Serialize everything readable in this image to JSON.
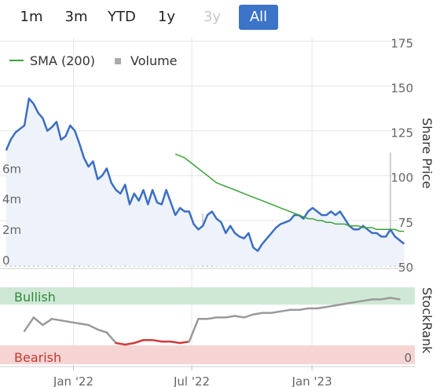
{
  "range_selector": {
    "buttons": [
      {
        "label": "1m",
        "state": "normal"
      },
      {
        "label": "3m",
        "state": "normal"
      },
      {
        "label": "YTD",
        "state": "normal"
      },
      {
        "label": "1y",
        "state": "normal"
      },
      {
        "label": "3y",
        "state": "disabled"
      },
      {
        "label": "All",
        "state": "active"
      }
    ]
  },
  "legend": {
    "sma_label": "SMA (200)",
    "volume_label": "Volume"
  },
  "colors": {
    "price_line": "#3b6fc2",
    "price_fill": "#eef2fa",
    "sma_line": "#3aa33a",
    "volume_bar": "#cfcfcf",
    "stockrank_line": "#9a9a9a",
    "stockrank_bearish_segment": "#d03a3a",
    "bullish_band": "#cfe8d6",
    "bullish_text": "#2e8b3a",
    "bearish_band": "#f6d4d4",
    "bearish_text": "#c0392b",
    "active_button": "#3b74c8"
  },
  "chart_data": [
    {
      "type": "line",
      "title": "",
      "ylabel_right": "Share Price",
      "right_axis_ticks": [
        "175",
        "150",
        "125",
        "100",
        "75",
        "50"
      ],
      "right_ylim": [
        50,
        175
      ],
      "left_axis_ticks": [
        "0",
        "2m",
        "4m",
        "6m"
      ],
      "left_ylim": [
        0,
        9
      ],
      "x_tick_labels": [
        "Jan '22",
        "Jul '22",
        "Jan '23"
      ],
      "x": [
        "2021-09-20",
        "2021-09-27",
        "2021-10-04",
        "2021-10-11",
        "2021-10-18",
        "2021-10-25",
        "2021-11-01",
        "2021-11-08",
        "2021-11-15",
        "2021-11-22",
        "2021-11-29",
        "2021-12-06",
        "2021-12-13",
        "2021-12-20",
        "2021-12-27",
        "2022-01-03",
        "2022-01-10",
        "2022-01-17",
        "2022-01-24",
        "2022-01-31",
        "2022-02-07",
        "2022-02-14",
        "2022-02-21",
        "2022-02-28",
        "2022-03-07",
        "2022-03-14",
        "2022-03-21",
        "2022-03-28",
        "2022-04-04",
        "2022-04-11",
        "2022-04-18",
        "2022-04-25",
        "2022-05-02",
        "2022-05-09",
        "2022-05-16",
        "2022-05-23",
        "2022-05-30",
        "2022-06-06",
        "2022-06-13",
        "2022-06-20",
        "2022-06-27",
        "2022-07-04",
        "2022-07-11",
        "2022-07-18",
        "2022-07-25",
        "2022-08-01",
        "2022-08-08",
        "2022-08-15",
        "2022-08-22",
        "2022-08-29",
        "2022-09-05",
        "2022-09-12",
        "2022-09-19",
        "2022-09-26",
        "2022-10-03",
        "2022-10-10",
        "2022-10-17",
        "2022-10-24",
        "2022-10-31",
        "2022-11-07",
        "2022-11-14",
        "2022-11-21",
        "2022-11-28",
        "2022-12-05",
        "2022-12-12",
        "2022-12-19",
        "2022-12-26",
        "2023-01-02",
        "2023-01-09",
        "2023-01-16",
        "2023-01-23",
        "2023-01-30",
        "2023-02-06",
        "2023-02-13",
        "2023-02-20",
        "2023-02-27",
        "2023-03-06",
        "2023-03-13",
        "2023-03-20",
        "2023-03-27",
        "2023-04-03",
        "2023-04-10",
        "2023-04-17",
        "2023-04-24",
        "2023-05-01",
        "2023-05-08",
        "2023-05-15",
        "2023-05-22"
      ],
      "series": [
        {
          "name": "",
          "values": [
            114,
            120,
            124,
            126,
            128,
            143,
            140,
            135,
            132,
            125,
            127,
            130,
            120,
            122,
            128,
            125,
            118,
            110,
            105,
            108,
            98,
            100,
            104,
            96,
            92,
            90,
            95,
            84,
            90,
            86,
            92,
            84,
            92,
            85,
            84,
            92,
            85,
            78,
            82,
            80,
            80,
            73,
            70,
            72,
            78,
            80,
            76,
            74,
            68,
            72,
            68,
            66,
            65,
            68,
            60,
            58,
            62,
            65,
            68,
            71,
            73,
            74,
            75,
            78,
            78,
            76,
            80,
            82,
            80,
            78,
            78,
            80,
            78,
            80,
            76,
            72,
            70,
            70,
            72,
            70,
            68,
            68,
            66,
            66,
            70,
            66,
            64,
            62
          ]
        },
        {
          "name": "SMA (200)",
          "values": [
            null,
            null,
            null,
            null,
            null,
            null,
            null,
            null,
            null,
            null,
            null,
            null,
            null,
            null,
            null,
            null,
            null,
            null,
            null,
            null,
            null,
            null,
            null,
            null,
            null,
            null,
            null,
            null,
            null,
            null,
            null,
            null,
            null,
            null,
            null,
            null,
            null,
            112,
            111,
            110,
            108,
            106,
            104,
            102,
            100,
            98,
            96,
            95,
            94,
            93,
            92,
            91,
            90,
            89,
            88,
            87,
            86,
            85,
            84,
            83,
            82,
            81,
            80,
            79,
            78,
            77,
            76,
            76,
            75,
            75,
            74,
            74,
            73,
            73,
            73,
            72,
            72,
            72,
            71,
            71,
            71,
            70,
            70,
            70,
            70,
            70,
            69,
            69
          ]
        },
        {
          "name": "Volume",
          "values": [
            0.1,
            0.15,
            0.1,
            0.2,
            0.1,
            0.15,
            0.1,
            0.1,
            0.05,
            0.1,
            0.2,
            0.1,
            0.05,
            0.1,
            0.05,
            0.1,
            0.1,
            0.05,
            0.1,
            0.05,
            0.05,
            0.1,
            0.05,
            0.1,
            0.05,
            0.05,
            0.6,
            0.05,
            0.05,
            0.05,
            0.05,
            0.05,
            0.05,
            0.05,
            0.05,
            0.05,
            0.05,
            0.05,
            0.05,
            0.05,
            0.05,
            0.05,
            0.05,
            3.5,
            0.1,
            0.1,
            0.05,
            0.05,
            0.05,
            0.05,
            0.05,
            0.05,
            0.05,
            0.05,
            0.05,
            0.05,
            0.05,
            0.05,
            0.05,
            0.05,
            0.05,
            0.05,
            0.05,
            0.1,
            0.05,
            0.05,
            0.05,
            0.05,
            0.05,
            0.05,
            0.05,
            0.05,
            0.05,
            0.05,
            0.05,
            0.05,
            0.05,
            0.05,
            0.05,
            0.05,
            0.05,
            0.05,
            0.05,
            0.05,
            7.5,
            0.1,
            0.1,
            0.1
          ]
        }
      ]
    },
    {
      "type": "line",
      "title": "",
      "ylabel_right": "StockRank",
      "right_axis_ticks": [
        "0"
      ],
      "ylim": [
        0,
        100
      ],
      "band_labels": {
        "bullish": "Bullish",
        "bearish": "Bearish"
      },
      "x": [
        "2021-10-18",
        "2021-11-01",
        "2021-11-15",
        "2021-11-29",
        "2021-12-13",
        "2021-12-27",
        "2022-01-10",
        "2022-01-24",
        "2022-02-07",
        "2022-02-21",
        "2022-03-07",
        "2022-03-21",
        "2022-04-04",
        "2022-04-18",
        "2022-05-02",
        "2022-05-16",
        "2022-05-30",
        "2022-06-13",
        "2022-06-27",
        "2022-07-11",
        "2022-07-25",
        "2022-08-08",
        "2022-08-22",
        "2022-09-05",
        "2022-09-19",
        "2022-10-03",
        "2022-10-17",
        "2022-10-31",
        "2022-11-14",
        "2022-11-28",
        "2022-12-12",
        "2022-12-26",
        "2023-01-09",
        "2023-01-23",
        "2023-02-06",
        "2023-02-20",
        "2023-03-06",
        "2023-03-20",
        "2023-04-03",
        "2023-04-17",
        "2023-05-01",
        "2023-05-15"
      ],
      "series": [
        {
          "name": "",
          "values": [
            42,
            60,
            50,
            58,
            56,
            54,
            52,
            50,
            44,
            40,
            26,
            24,
            26,
            30,
            30,
            28,
            28,
            26,
            28,
            58,
            58,
            60,
            60,
            62,
            60,
            64,
            66,
            66,
            68,
            70,
            70,
            72,
            72,
            74,
            76,
            78,
            80,
            82,
            84,
            84,
            86,
            84
          ]
        }
      ]
    }
  ]
}
